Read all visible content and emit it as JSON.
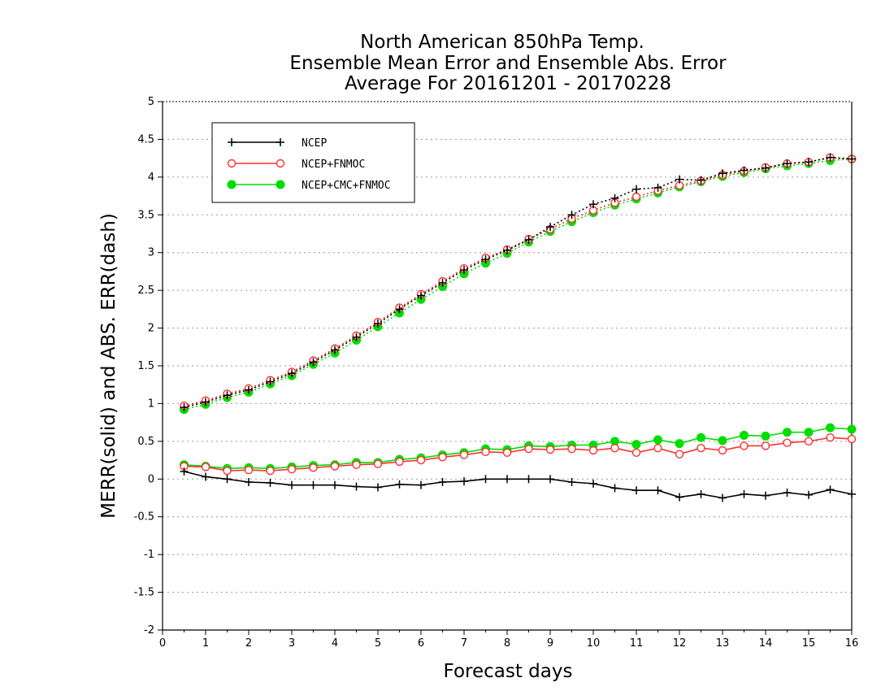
{
  "chart_data": {
    "type": "line",
    "title_lines": [
      "North American 850hPa Temp.",
      "Ensemble Mean Error and Ensemble Abs. Error",
      "Average For 20161201 - 20170228"
    ],
    "xlabel": "Forecast days",
    "ylabel": "MERR(solid) and ABS. ERR(dash)",
    "xlim": [
      0,
      16
    ],
    "ylim": [
      -2,
      5
    ],
    "x_ticks": [
      "0",
      "1",
      "2",
      "3",
      "4",
      "5",
      "6",
      "7",
      "8",
      "9",
      "10",
      "11",
      "12",
      "13",
      "14",
      "15",
      "16"
    ],
    "y_ticks": [
      "-2",
      "-1.5",
      "-1",
      "-0.5",
      "0",
      "0.5",
      "1",
      "1.5",
      "2",
      "2.5",
      "3",
      "3.5",
      "4",
      "4.5",
      "5"
    ],
    "grid": "horizontal dotted",
    "legend_position": "top-left",
    "x": [
      0.5,
      1,
      1.5,
      2,
      2.5,
      3,
      3.5,
      4,
      4.5,
      5,
      5.5,
      6,
      6.5,
      7,
      7.5,
      8,
      8.5,
      9,
      9.5,
      10,
      10.5,
      11,
      11.5,
      12,
      12.5,
      13,
      13.5,
      14,
      14.5,
      15,
      15.5,
      16
    ],
    "series": [
      {
        "name": "NCEP",
        "color": "#000000",
        "marker": "plus",
        "merr": [
          0.1,
          0.03,
          0.0,
          -0.04,
          -0.05,
          -0.08,
          -0.08,
          -0.08,
          -0.1,
          -0.11,
          -0.07,
          -0.08,
          -0.04,
          -0.03,
          0.0,
          0.0,
          0.0,
          0.0,
          -0.04,
          -0.06,
          -0.12,
          -0.15,
          -0.15,
          -0.24,
          -0.2,
          -0.25,
          -0.2,
          -0.22,
          -0.18,
          -0.21,
          -0.14,
          -0.2
        ],
        "abs_err": [
          0.95,
          1.02,
          1.11,
          1.18,
          1.29,
          1.4,
          1.55,
          1.71,
          1.88,
          2.06,
          2.25,
          2.43,
          2.6,
          2.77,
          2.91,
          3.03,
          3.17,
          3.34,
          3.5,
          3.64,
          3.72,
          3.84,
          3.86,
          3.97,
          3.96,
          4.05,
          4.09,
          4.12,
          4.18,
          4.2,
          4.26,
          4.24
        ]
      },
      {
        "name": "NCEP+FNMOC",
        "color": "#ff3030",
        "marker": "open-circle",
        "merr": [
          0.17,
          0.16,
          0.11,
          0.12,
          0.11,
          0.13,
          0.15,
          0.17,
          0.19,
          0.2,
          0.23,
          0.25,
          0.29,
          0.32,
          0.36,
          0.35,
          0.4,
          0.39,
          0.4,
          0.38,
          0.41,
          0.35,
          0.41,
          0.33,
          0.41,
          0.38,
          0.44,
          0.44,
          0.48,
          0.5,
          0.55,
          0.53
        ],
        "abs_err": [
          0.97,
          1.04,
          1.13,
          1.2,
          1.31,
          1.42,
          1.57,
          1.73,
          1.9,
          2.08,
          2.27,
          2.45,
          2.62,
          2.79,
          2.93,
          3.04,
          3.18,
          3.31,
          3.45,
          3.56,
          3.66,
          3.74,
          3.82,
          3.89,
          3.95,
          4.03,
          4.08,
          4.13,
          4.18,
          4.2,
          4.26,
          4.24
        ]
      },
      {
        "name": "NCEP+CMC+FNMOC",
        "color": "#00dd00",
        "marker": "filled-circle",
        "merr": [
          0.19,
          0.17,
          0.14,
          0.15,
          0.14,
          0.16,
          0.18,
          0.19,
          0.22,
          0.22,
          0.26,
          0.28,
          0.32,
          0.35,
          0.4,
          0.39,
          0.44,
          0.43,
          0.45,
          0.45,
          0.5,
          0.46,
          0.52,
          0.47,
          0.55,
          0.51,
          0.58,
          0.57,
          0.62,
          0.62,
          0.68,
          0.66
        ],
        "abs_err": [
          0.92,
          0.99,
          1.08,
          1.15,
          1.26,
          1.37,
          1.52,
          1.67,
          1.84,
          2.02,
          2.2,
          2.38,
          2.55,
          2.72,
          2.86,
          2.99,
          3.14,
          3.28,
          3.41,
          3.53,
          3.63,
          3.71,
          3.79,
          3.87,
          3.94,
          4.01,
          4.06,
          4.11,
          4.15,
          4.18,
          4.22,
          4.24
        ]
      }
    ]
  }
}
